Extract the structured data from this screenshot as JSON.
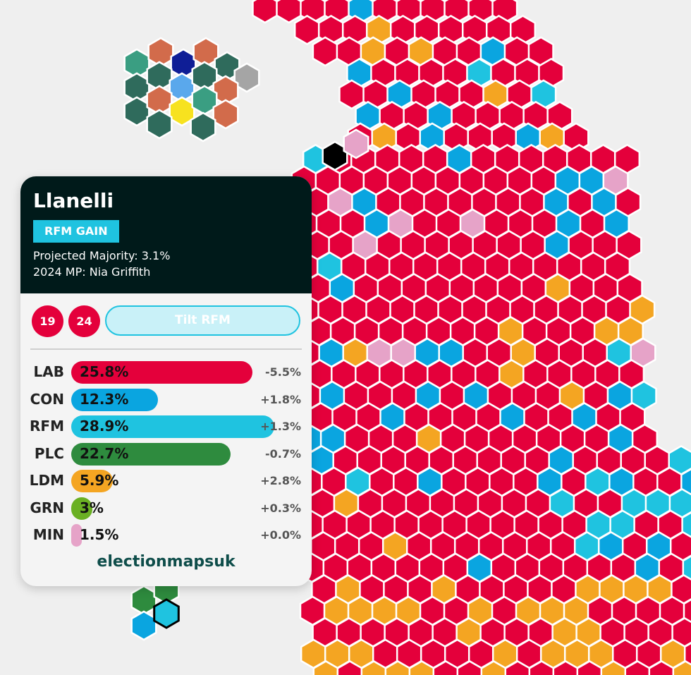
{
  "map": {
    "colors": {
      "LAB": "#e4003b",
      "CON": "#0aa5e0",
      "RFM": "#1fc3e0",
      "PLC": "#2e8b3e",
      "LDM": "#f4a522",
      "GRN": "#6ab023",
      "MIN": "#e6a3c8",
      "OTH": "#000000",
      "SC1": "#3a9e82",
      "SC2": "#2f6b5c",
      "SC3": "#d26b4b",
      "SC4": "#0f1e96",
      "SC5": "#5aa8ec",
      "SC6": "#f7e21f",
      "SC7": "#a5a5a5",
      "selected_outline": "#000000"
    }
  },
  "card": {
    "seat_name": "Llanelli",
    "result_badge": "RFM GAIN",
    "majority": "Projected Majority: 3.1%",
    "mp": "2024 MP: Nia Griffith",
    "circle_a": "19",
    "circle_b": "24",
    "tilt_label": "Tilt RFM",
    "parties": [
      {
        "party": "LAB",
        "share": 25.8,
        "share_label": "25.8%",
        "change": "-5.5%",
        "color": "#e4003b"
      },
      {
        "party": "CON",
        "share": 12.3,
        "share_label": "12.3%",
        "change": "+1.8%",
        "color": "#0aa5e0"
      },
      {
        "party": "RFM",
        "share": 28.9,
        "share_label": "28.9%",
        "change": "+1.3%",
        "color": "#1fc3e0"
      },
      {
        "party": "PLC",
        "share": 22.7,
        "share_label": "22.7%",
        "change": "-0.7%",
        "color": "#2e8b3e"
      },
      {
        "party": "LDM",
        "share": 5.9,
        "share_label": "5.9%",
        "change": "+2.8%",
        "color": "#f4a522"
      },
      {
        "party": "GRN",
        "share": 3,
        "share_label": "3%",
        "change": "+0.3%",
        "color": "#6ab023"
      },
      {
        "party": "MIN",
        "share": 1.5,
        "share_label": "1.5%",
        "change": "+0.0%",
        "color": "#e6a3c8"
      }
    ],
    "brand": "electionmapsuk"
  }
}
